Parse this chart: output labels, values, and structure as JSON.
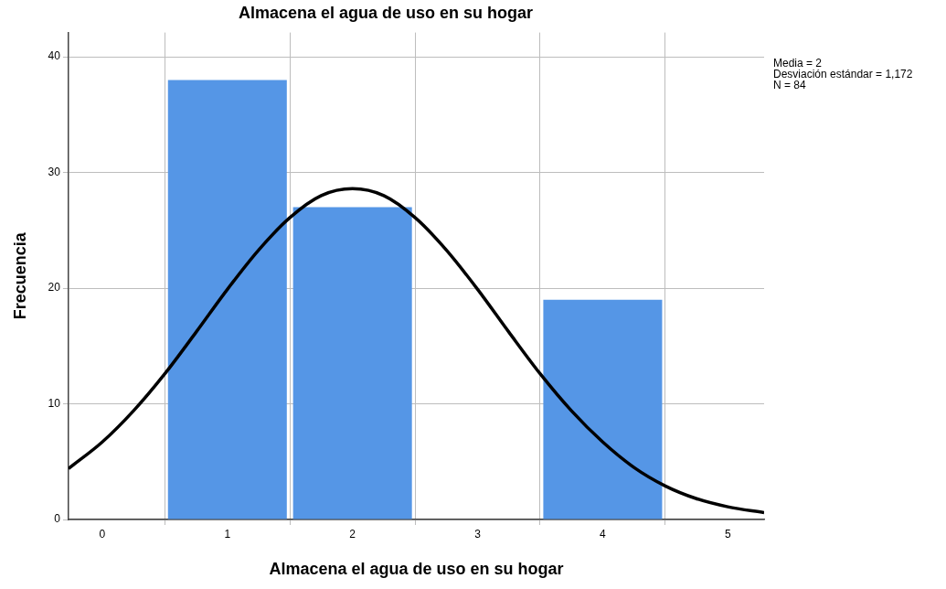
{
  "chart_data": {
    "type": "histogram",
    "title": "Almacena el agua de uso en su hogar",
    "xlabel": "Almacena el agua de uso en su hogar",
    "ylabel": "Frecuencia",
    "bins": [
      0.5,
      1.5,
      2.5,
      3.5,
      4.5
    ],
    "values": [
      38,
      27,
      0,
      19
    ],
    "color": "#5596e6",
    "series": [
      {
        "type": "line",
        "color": "#000000",
        "x": [
          -0.27,
          0,
          0.25,
          0.5,
          0.75,
          1,
          1.25,
          1.5,
          1.75,
          2,
          2.25,
          2.5,
          2.75,
          3,
          3.25,
          3.5,
          3.75,
          4,
          4.25,
          4.5,
          4.75,
          5,
          5.29
        ],
        "values": [
          4.4,
          6.7,
          9.4,
          12.6,
          16.2,
          19.9,
          23.3,
          26.1,
          28.0,
          28.6,
          28.0,
          26.1,
          23.3,
          19.9,
          16.2,
          12.6,
          9.4,
          6.7,
          4.5,
          2.9,
          1.8,
          1.1,
          0.6
        ]
      }
    ],
    "xlim": [
      -0.27,
      5.29
    ],
    "xticks": [
      0,
      1,
      2,
      3,
      4,
      5
    ],
    "ylim": [
      0,
      42.1
    ],
    "yticks": [
      0,
      10,
      20,
      30,
      40
    ],
    "grid": true,
    "legend": false,
    "marker": "none",
    "line_style": "solid",
    "annotations": [
      "Media = 2",
      "Desviación estándar = 1,172",
      "N = 84"
    ]
  }
}
